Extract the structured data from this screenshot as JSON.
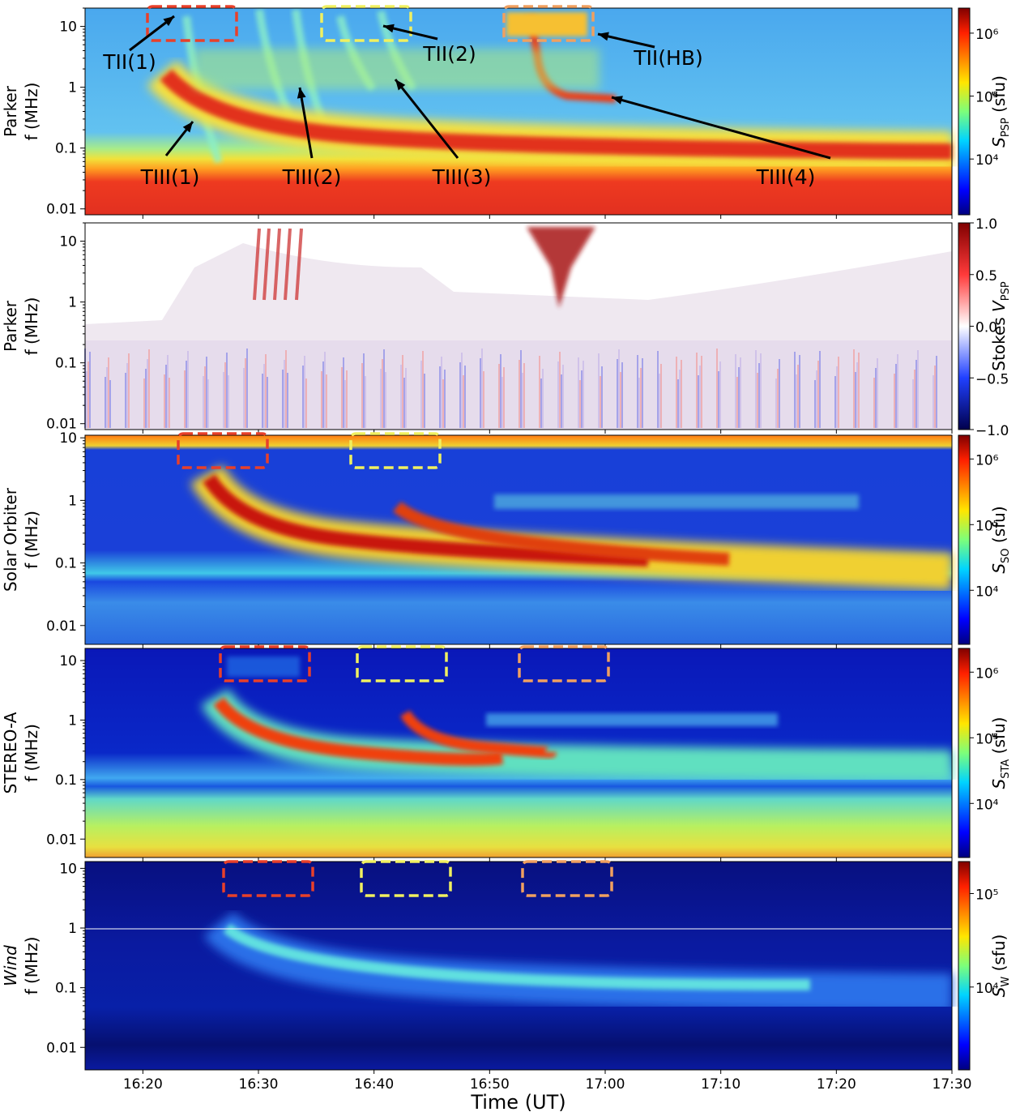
{
  "chart_data": [
    {
      "type": "spectrogram",
      "ylabel": [
        "Parker",
        "f (MHz)"
      ],
      "log_y": true,
      "ylim": [
        0.008,
        20
      ],
      "yticks": [
        0.01,
        0.1,
        1,
        10
      ],
      "colormap": "jet",
      "colorbar": {
        "symbol": "S",
        "subscript": "PSP",
        "unit": "(sfu)",
        "log": true,
        "lim": [
          1300,
          2500000
        ],
        "ticks": [
          {
            "value": 10000,
            "label": "10⁴"
          },
          {
            "value": 100000,
            "label": "10⁵"
          },
          {
            "value": 1000000,
            "label": "10⁶"
          }
        ]
      },
      "annotations": [
        "TII(1)",
        "TII(2)",
        "TII(HB)",
        "TIII(1)",
        "TIII(2)",
        "TIII(3)",
        "TIII(4)"
      ]
    },
    {
      "type": "spectrogram",
      "ylabel": [
        "Parker",
        "f (MHz)"
      ],
      "log_y": true,
      "ylim": [
        0.008,
        20
      ],
      "yticks": [
        0.01,
        0.1,
        1,
        10
      ],
      "colormap": "seismic",
      "colorbar": {
        "prefix": "Stokes",
        "symbol": "V",
        "subscript": "PSP",
        "log": false,
        "lim": [
          -1,
          1
        ],
        "ticks": [
          {
            "value": -1,
            "label": "−1.0"
          },
          {
            "value": -0.5,
            "label": "−0.5"
          },
          {
            "value": 0,
            "label": "0.0"
          },
          {
            "value": 0.5,
            "label": "0.5"
          },
          {
            "value": 1,
            "label": "1.0"
          }
        ]
      }
    },
    {
      "type": "spectrogram",
      "ylabel": [
        "Solar Orbiter",
        "f (MHz)"
      ],
      "log_y": true,
      "ylim": [
        0.005,
        11
      ],
      "yticks": [
        0.01,
        0.1,
        1,
        10
      ],
      "colormap": "jet",
      "colorbar": {
        "symbol": "S",
        "subscript": "SO",
        "unit": "(sfu)",
        "log": true,
        "lim": [
          1500,
          2300000
        ],
        "ticks": [
          {
            "value": 10000,
            "label": "10⁴"
          },
          {
            "value": 100000,
            "label": "10⁵"
          },
          {
            "value": 1000000,
            "label": "10⁶"
          }
        ]
      }
    },
    {
      "type": "spectrogram",
      "ylabel": [
        "STEREO-A",
        "f (MHz)"
      ],
      "log_y": true,
      "ylim": [
        0.0049,
        16
      ],
      "yticks": [
        0.01,
        0.1,
        1,
        10
      ],
      "colormap": "jet",
      "colorbar": {
        "symbol": "S",
        "subscript": "STA",
        "unit": "(sfu)",
        "log": true,
        "lim": [
          1500,
          2300000
        ],
        "ticks": [
          {
            "value": 10000,
            "label": "10⁴"
          },
          {
            "value": 100000,
            "label": "10⁵"
          },
          {
            "value": 1000000,
            "label": "10⁶"
          }
        ]
      }
    },
    {
      "type": "spectrogram",
      "ylabel": [
        "Wind",
        "f (MHz)"
      ],
      "ylabel_style": "italic",
      "log_y": true,
      "ylim": [
        0.0042,
        13
      ],
      "yticks": [
        0.01,
        0.1,
        1,
        10
      ],
      "colormap": "jet",
      "colorbar": {
        "symbol": "S",
        "subscript": "W",
        "unit": "(sfu)",
        "log": true,
        "lim": [
          1300,
          220000
        ],
        "ticks": [
          {
            "value": 10000,
            "label": "10⁴"
          },
          {
            "value": 100000,
            "label": "10⁵"
          }
        ]
      },
      "xlabel": "Time (UT)",
      "xlim": [
        "16:15",
        "17:30"
      ],
      "xticks": [
        "16:20",
        "16:30",
        "16:40",
        "16:50",
        "17:00",
        "17:10",
        "17:20",
        "17:30"
      ]
    }
  ]
}
